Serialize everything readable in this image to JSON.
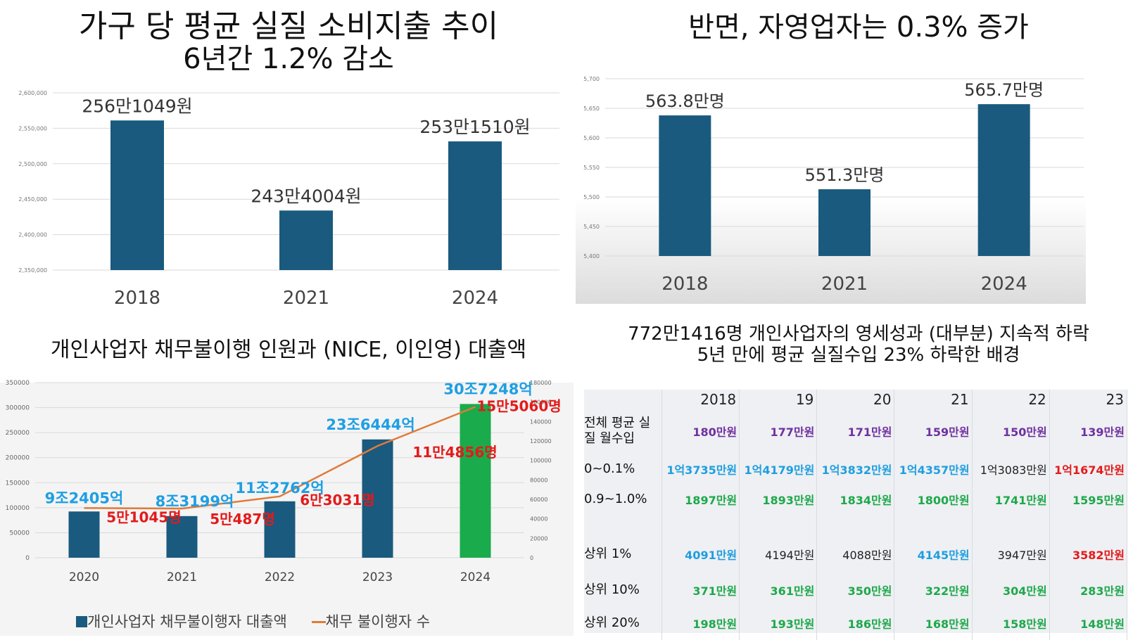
{
  "panel1": {
    "title_line1": "가구 당 평균 실질 소비지출 추이",
    "title_line2": "6년간 1.2% 감소"
  },
  "panel2": {
    "title": "반면, 자영업자는 0.3% 증가",
    "subtitle_line1": "772만1416명 개인사업자의 영세성과 (대부분) 지속적 하락",
    "subtitle_line2": "5년 만에 평균 실질수입 23% 하락한 배경"
  },
  "panel3": {
    "title": "개인사업자 채무불이행 인원과 (NICE, 이인영) 대출액"
  },
  "colors": {
    "bar": "#1a5a7e",
    "bar_highlight": "#1aab4c",
    "line": "#e07b39",
    "label_blue": "#1e9fe3",
    "label_red": "#e41a1a"
  },
  "chart_data": [
    {
      "type": "bar",
      "categories": [
        "2018",
        "2021",
        "2024"
      ],
      "values": [
        2561049,
        2434004,
        2531510
      ],
      "data_labels": [
        "256만1049원",
        "243만4004원",
        "253만1510원"
      ],
      "ylim": [
        2350000,
        2600000
      ],
      "yticks": [
        "2,350,000",
        "2,400,000",
        "2,450,000",
        "2,500,000",
        "2,550,000",
        "2,600,000"
      ],
      "grid": true
    },
    {
      "type": "bar",
      "categories": [
        "2018",
        "2021",
        "2024"
      ],
      "values": [
        5638,
        5513,
        5657
      ],
      "data_labels": [
        "563.8만명",
        "551.3만명",
        "565.7만명"
      ],
      "ylim": [
        5400,
        5700
      ],
      "yticks": [
        "5,400",
        "5,450",
        "5,500",
        "5,550",
        "5,600",
        "5,650",
        "5,700"
      ],
      "grid": true
    },
    {
      "type": "bar",
      "categories": [
        "2020",
        "2021",
        "2022",
        "2023",
        "2024"
      ],
      "series": [
        {
          "name": "개인사업자 채무불이행자 대출액",
          "values": [
            92405,
            83199,
            112762,
            236444,
            307248
          ],
          "data_labels": [
            "9조2405억",
            "8조3199억",
            "11조2762억",
            "23조6444억",
            "30조7248억"
          ],
          "axis": "left"
        },
        {
          "name": "채무 불이행자 수",
          "type": "line",
          "values": [
            51045,
            50487,
            63031,
            114856,
            155060
          ],
          "data_labels": [
            "5만1045명",
            "5만487명",
            "6만3031명",
            "11만4856명",
            "15만5060명"
          ],
          "axis": "right"
        }
      ],
      "ylim": [
        0,
        350000
      ],
      "y2lim": [
        0,
        180000
      ],
      "yticks": [
        "0",
        "50000",
        "100000",
        "150000",
        "200000",
        "250000",
        "300000",
        "350000"
      ],
      "y2ticks": [
        "0",
        "20000",
        "40000",
        "60000",
        "80000",
        "100000",
        "120000",
        "140000",
        "160000",
        "180000"
      ],
      "legend_position": "bottom",
      "grid": true
    },
    {
      "type": "table",
      "columns": [
        "2018",
        "19",
        "20",
        "21",
        "22",
        "23"
      ],
      "rows": [
        {
          "label": "전체 평균 실질 월수입",
          "cells": [
            {
              "v": "180만원",
              "c": "purple"
            },
            {
              "v": "177만원",
              "c": "purple"
            },
            {
              "v": "171만원",
              "c": "purple"
            },
            {
              "v": "159만원",
              "c": "purple"
            },
            {
              "v": "150만원",
              "c": "purple"
            },
            {
              "v": "139만원",
              "c": "purple"
            }
          ]
        },
        {
          "label": "0~0.1%",
          "cells": [
            {
              "v": "1억3735만원",
              "c": "blue"
            },
            {
              "v": "1억4179만원",
              "c": "blue"
            },
            {
              "v": "1억3832만원",
              "c": "blue"
            },
            {
              "v": "1억4357만원",
              "c": "blue"
            },
            {
              "v": "1억3083만원",
              "c": "black"
            },
            {
              "v": "1억1674만원",
              "c": "red"
            }
          ]
        },
        {
          "label": "0.9~1.0%",
          "cells": [
            {
              "v": "1897만원",
              "c": "green"
            },
            {
              "v": "1893만원",
              "c": "green"
            },
            {
              "v": "1834만원",
              "c": "green"
            },
            {
              "v": "1800만원",
              "c": "green"
            },
            {
              "v": "1741만원",
              "c": "green"
            },
            {
              "v": "1595만원",
              "c": "green"
            }
          ]
        },
        {
          "label": "",
          "cells": [
            {
              "v": "",
              "c": "black"
            },
            {
              "v": "",
              "c": "black"
            },
            {
              "v": "",
              "c": "black"
            },
            {
              "v": "",
              "c": "black"
            },
            {
              "v": "",
              "c": "black"
            },
            {
              "v": "",
              "c": "black"
            }
          ]
        },
        {
          "label": "상위 1%",
          "cells": [
            {
              "v": "4091만원",
              "c": "blue"
            },
            {
              "v": "4194만원",
              "c": "black"
            },
            {
              "v": "4088만원",
              "c": "black"
            },
            {
              "v": "4145만원",
              "c": "blue"
            },
            {
              "v": "3947만원",
              "c": "black"
            },
            {
              "v": "3582만원",
              "c": "red"
            }
          ]
        },
        {
          "label": "상위 10%",
          "cells": [
            {
              "v": "371만원",
              "c": "green"
            },
            {
              "v": "361만원",
              "c": "green"
            },
            {
              "v": "350만원",
              "c": "green"
            },
            {
              "v": "322만원",
              "c": "green"
            },
            {
              "v": "304만원",
              "c": "green"
            },
            {
              "v": "283만원",
              "c": "green"
            }
          ]
        },
        {
          "label": "상위 20%",
          "cells": [
            {
              "v": "198만원",
              "c": "green"
            },
            {
              "v": "193만원",
              "c": "green"
            },
            {
              "v": "186만원",
              "c": "green"
            },
            {
              "v": "168만원",
              "c": "green"
            },
            {
              "v": "158만원",
              "c": "green"
            },
            {
              "v": "148만원",
              "c": "green"
            }
          ]
        }
      ]
    }
  ]
}
